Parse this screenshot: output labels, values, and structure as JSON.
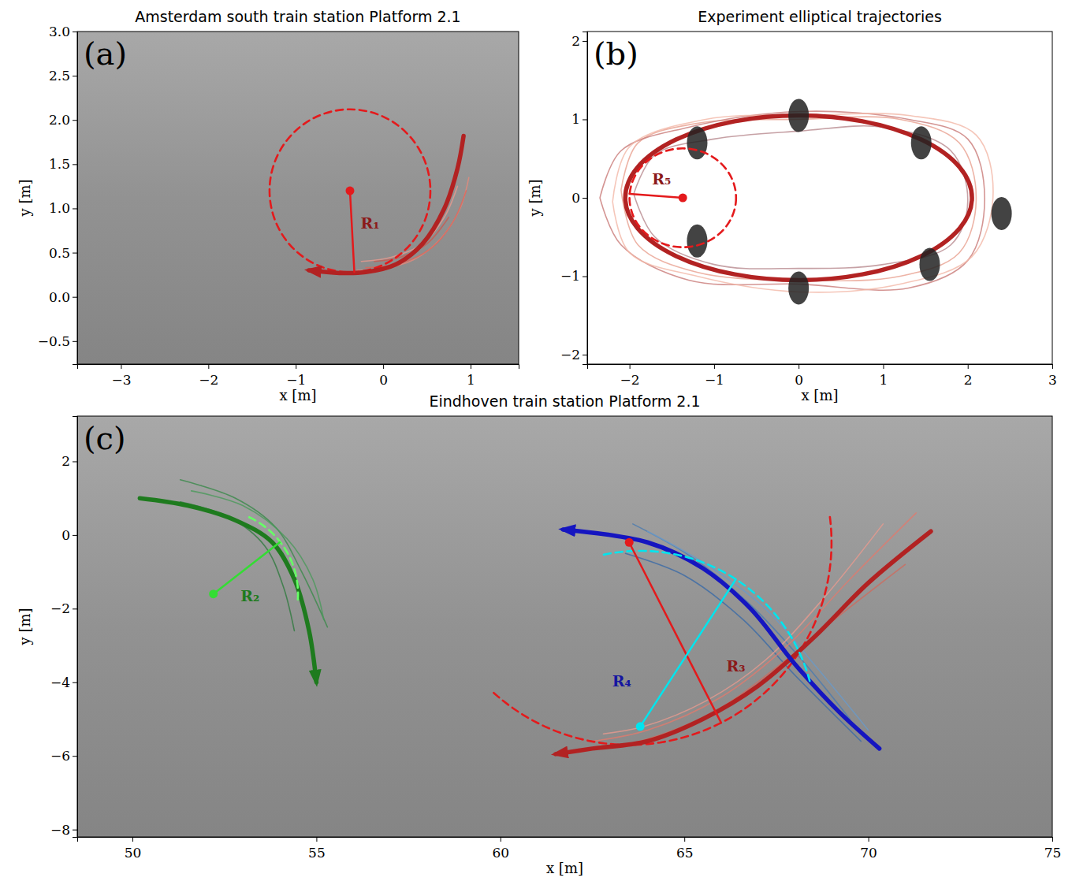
{
  "chart_data": [
    {
      "type": "line",
      "title": "Amsterdam south train station Platform 2.1",
      "panel_label": "(a)",
      "x_label": "x [m]",
      "y_label": "y [m]",
      "xlim": [
        -3.5,
        1.55
      ],
      "ylim": [
        -0.76,
        3.0
      ],
      "xticks": [
        {
          "value": -3,
          "label": "−3"
        },
        {
          "value": -2,
          "label": "−2"
        },
        {
          "value": -1,
          "label": "−1"
        },
        0,
        1
      ],
      "yticks": [
        {
          "value": -0.5,
          "label": "−0.5"
        },
        {
          "value": 0,
          "label": "0.0"
        },
        0.5,
        {
          "value": 1,
          "label": "1.0"
        },
        1.5,
        {
          "value": 2,
          "label": "2.0"
        },
        2.5,
        {
          "value": 3,
          "label": "3.0"
        }
      ],
      "series": [
        {
          "type": "line",
          "color": "#e58a7c",
          "line_style": "thin",
          "x": [
            0.98,
            0.88,
            0.65,
            0.35,
            0.0,
            -0.3
          ],
          "y": [
            1.35,
            1.0,
            0.65,
            0.42,
            0.32,
            0.3
          ]
        },
        {
          "type": "line",
          "color": "#d9685c",
          "line_style": "thin",
          "x": [
            0.95,
            0.8,
            0.55,
            0.2,
            -0.2
          ],
          "y": [
            1.2,
            0.85,
            0.55,
            0.38,
            0.33
          ]
        },
        {
          "type": "line",
          "color": "#e89a8e",
          "line_style": "thin",
          "x": [
            0.85,
            0.7,
            0.45,
            0.1,
            -0.25
          ],
          "y": [
            1.25,
            0.9,
            0.6,
            0.45,
            0.4
          ]
        },
        {
          "type": "line",
          "color": "#c85a50",
          "line_style": "thin",
          "x": [
            0.75,
            0.5,
            0.2,
            -0.1
          ],
          "y": [
            0.9,
            0.6,
            0.45,
            0.4
          ]
        },
        {
          "type": "circle",
          "color": "#e41a1c",
          "line_style": "dashed",
          "cx": -0.38,
          "cy": 1.2,
          "r": 0.92
        },
        {
          "type": "line",
          "color": "#b22222",
          "line_style": "thick",
          "marker": "arrow",
          "x": [
            0.92,
            0.85,
            0.7,
            0.45,
            0.15,
            -0.2,
            -0.5,
            -0.85
          ],
          "y": [
            1.82,
            1.45,
            1.0,
            0.6,
            0.37,
            0.28,
            0.27,
            0.3
          ]
        },
        {
          "type": "line",
          "color": "#e41a1c",
          "line_style": "solid",
          "x": [
            -0.38,
            -0.33
          ],
          "y": [
            1.2,
            0.28
          ]
        },
        {
          "type": "scatter",
          "color": "#e41a1c",
          "marker": "dot",
          "x": [
            -0.38
          ],
          "y": [
            1.2
          ]
        }
      ],
      "annotations": [
        {
          "text": "R₁",
          "x": -0.15,
          "y": 0.82,
          "color": "#8b1a1a"
        }
      ]
    },
    {
      "type": "line",
      "title": "Experiment elliptical trajectories",
      "panel_label": "(b)",
      "x_label": "x [m]",
      "y_label": "y [m]",
      "xlim": [
        -2.5,
        3.0
      ],
      "ylim": [
        -2.12,
        2.12
      ],
      "xticks": [
        {
          "value": -2,
          "label": "−2"
        },
        {
          "value": -1,
          "label": "−1"
        },
        0,
        1,
        2,
        3
      ],
      "yticks": [
        {
          "value": -2,
          "label": "−2"
        },
        {
          "value": -1,
          "label": "−1"
        },
        0,
        1,
        2
      ],
      "series": [
        {
          "type": "line",
          "color": "#e8a090",
          "line_style": "thin",
          "x": [
            -2.1,
            -1.9,
            -1.2,
            0,
            1.2,
            1.9,
            2.1,
            1.9,
            1.2,
            0,
            -1.2,
            -1.9,
            -2.1
          ],
          "y": [
            0.1,
            0.7,
            0.95,
            1.0,
            1.0,
            0.7,
            0,
            -0.7,
            -1.0,
            -1.05,
            -0.95,
            -0.6,
            0.1
          ]
        },
        {
          "type": "line",
          "color": "#c97a78",
          "line_style": "thin",
          "x": [
            -2.35,
            -2.1,
            -1.3,
            0,
            1.3,
            2.0,
            2.2,
            2.0,
            1.3,
            0,
            -1.3,
            -2.1,
            -2.35
          ],
          "y": [
            0,
            0.6,
            0.9,
            1.1,
            1.0,
            0.75,
            0,
            -0.8,
            -1.15,
            -1.1,
            -1.05,
            -0.6,
            0
          ]
        },
        {
          "type": "line",
          "color": "#b8898e",
          "line_style": "thin",
          "x": [
            -1.95,
            -1.7,
            -1.0,
            0,
            1.0,
            1.8,
            2.0,
            1.8,
            1.0,
            0,
            -1.0,
            -1.7,
            -1.95
          ],
          "y": [
            0.05,
            0.55,
            0.75,
            0.85,
            0.9,
            0.6,
            -0.05,
            -0.6,
            -0.85,
            -0.9,
            -0.85,
            -0.5,
            0.05
          ]
        },
        {
          "type": "line",
          "color": "#f2b8a8",
          "line_style": "thin",
          "x": [
            -2.2,
            -2.0,
            -1.1,
            0.1,
            1.3,
            2.1,
            2.3,
            2.05,
            1.2,
            0,
            -1.2,
            -2.0,
            -2.2
          ],
          "y": [
            -0.05,
            0.65,
            1.0,
            1.05,
            1.05,
            0.8,
            0.05,
            -0.75,
            -1.1,
            -1.2,
            -1.0,
            -0.7,
            -0.05
          ]
        },
        {
          "type": "ellipse",
          "color": "#b22222",
          "line_style": "thick",
          "cx": 0,
          "cy": 0,
          "rx": 2.05,
          "ry": 1.05
        },
        {
          "type": "scatter",
          "color": "#222222",
          "marker": "person",
          "x": [
            -1.2,
            0,
            1.45,
            2.4,
            1.55,
            0,
            -1.2
          ],
          "y": [
            0.7,
            1.05,
            0.7,
            -0.2,
            -0.85,
            -1.15,
            -0.55
          ]
        },
        {
          "type": "circle",
          "color": "#e41a1c",
          "line_style": "dashed",
          "cx": -1.37,
          "cy": 0,
          "r": 0.63
        },
        {
          "type": "line",
          "color": "#e41a1c",
          "line_style": "solid",
          "x": [
            -1.37,
            -2.0
          ],
          "y": [
            0,
            0.05
          ]
        },
        {
          "type": "scatter",
          "color": "#e41a1c",
          "marker": "dot",
          "x": [
            -1.37
          ],
          "y": [
            0
          ]
        }
      ],
      "annotations": [
        {
          "text": "R₅",
          "x": -1.62,
          "y": 0.22,
          "color": "#8b1a1a"
        }
      ]
    },
    {
      "type": "line",
      "title": "Eindhoven train station Platform 2.1",
      "panel_label": "(c)",
      "x_label": "x [m]",
      "y_label": "y [m]",
      "xlim": [
        48.5,
        75.0
      ],
      "ylim": [
        -8.2,
        3.23
      ],
      "xticks": [
        50,
        55,
        60,
        65,
        70,
        75
      ],
      "yticks": [
        {
          "value": -8,
          "label": "−8"
        },
        {
          "value": -6,
          "label": "−6"
        },
        {
          "value": -4,
          "label": "−4"
        },
        {
          "value": -2,
          "label": "−2"
        },
        0,
        2
      ],
      "series": [
        {
          "type": "line",
          "color": "#3a8a4a",
          "line_style": "thin",
          "x": [
            51.3,
            52.8,
            53.9,
            54.6,
            55.3
          ],
          "y": [
            1.5,
            1.0,
            0.2,
            -1.0,
            -2.5
          ]
        },
        {
          "type": "line",
          "color": "#2f7a3f",
          "line_style": "thin",
          "x": [
            51.3,
            52.6,
            53.6,
            54.1,
            54.4
          ],
          "y": [
            0.9,
            0.5,
            -0.3,
            -1.4,
            -2.6
          ]
        },
        {
          "type": "line",
          "color": "#4a9a5a",
          "line_style": "thin",
          "x": [
            51.6,
            53.0,
            54.2,
            54.9,
            55.2
          ],
          "y": [
            1.2,
            0.8,
            -0.1,
            -1.2,
            -2.3
          ]
        },
        {
          "type": "line",
          "color": "#4a7ab0",
          "line_style": "thin",
          "x": [
            63.6,
            65.2,
            66.8,
            68.2,
            69.5
          ],
          "y": [
            0.3,
            -0.6,
            -1.9,
            -3.4,
            -5.0
          ]
        },
        {
          "type": "line",
          "color": "#3a6aa8",
          "line_style": "thin",
          "x": [
            63.4,
            65.0,
            66.6,
            68.0,
            69.8
          ],
          "y": [
            -0.5,
            -1.1,
            -2.3,
            -3.8,
            -5.6
          ]
        },
        {
          "type": "line",
          "color": "#6a9ac8",
          "line_style": "thin",
          "x": [
            64.0,
            65.6,
            67.2,
            68.6,
            70.0
          ],
          "y": [
            0.1,
            -0.8,
            -2.0,
            -3.6,
            -5.3
          ]
        },
        {
          "type": "line",
          "color": "#e07b6e",
          "line_style": "thin",
          "x": [
            71.3,
            69.5,
            67.8,
            66.0,
            64.0,
            62.5
          ],
          "y": [
            0.6,
            -1.2,
            -3.0,
            -4.4,
            -5.3,
            -5.6
          ]
        },
        {
          "type": "line",
          "color": "#d06a5e",
          "line_style": "thin",
          "x": [
            71.0,
            69.2,
            67.5,
            65.8,
            63.8,
            62.6
          ],
          "y": [
            -0.8,
            -2.2,
            -3.6,
            -4.8,
            -5.6,
            -5.8
          ]
        },
        {
          "type": "line",
          "color": "#e89a8e",
          "line_style": "thin",
          "x": [
            70.4,
            68.8,
            67.2,
            65.6,
            63.9,
            62.8
          ],
          "y": [
            0.3,
            -1.7,
            -3.4,
            -4.5,
            -5.2,
            -5.4
          ]
        },
        {
          "type": "line",
          "color": "#1e7b1e",
          "line_style": "thick",
          "marker": "arrow",
          "x": [
            50.2,
            51.5,
            52.8,
            53.8,
            54.4,
            54.8,
            55.0
          ],
          "y": [
            1.0,
            0.8,
            0.4,
            -0.2,
            -1.2,
            -2.6,
            -4.0
          ]
        },
        {
          "type": "arc",
          "color": "#66ff66",
          "line_style": "dashed",
          "cx": 52.2,
          "cy": -1.6,
          "r": 2.3,
          "theta": [
            65,
            -5
          ]
        },
        {
          "type": "line",
          "color": "#33dd33",
          "line_style": "solid",
          "x": [
            52.2,
            54.0
          ],
          "y": [
            -1.6,
            -0.2
          ]
        },
        {
          "type": "scatter",
          "color": "#33dd33",
          "marker": "dot",
          "x": [
            52.2
          ],
          "y": [
            -1.6
          ]
        },
        {
          "type": "arc",
          "color": "#e41a1c",
          "line_style": "dashed",
          "cx": 63.5,
          "cy": -0.2,
          "r": 5.5,
          "theta": [
            228,
            368
          ]
        },
        {
          "type": "line",
          "color": "#b22222",
          "line_style": "thick",
          "marker": "arrow",
          "x": [
            71.7,
            70.0,
            68.5,
            67.0,
            65.5,
            64.0,
            62.5,
            61.5
          ],
          "y": [
            0.1,
            -1.3,
            -2.8,
            -4.1,
            -5.0,
            -5.6,
            -5.8,
            -5.95
          ]
        },
        {
          "type": "line",
          "color": "#1515c0",
          "line_style": "thick",
          "marker": "arrow",
          "x": [
            70.3,
            69.2,
            68.0,
            66.8,
            65.5,
            64.0,
            61.7
          ],
          "y": [
            -5.8,
            -4.8,
            -3.5,
            -2.0,
            -0.9,
            -0.2,
            0.15
          ]
        },
        {
          "type": "arc",
          "color": "#00e5ee",
          "line_style": "dashed",
          "cx": 63.8,
          "cy": -5.2,
          "r": 4.77,
          "theta": [
            102,
            15
          ]
        },
        {
          "type": "line",
          "color": "#e41a1c",
          "line_style": "solid",
          "x": [
            63.5,
            66.0
          ],
          "y": [
            -0.2,
            -5.1
          ]
        },
        {
          "type": "scatter",
          "color": "#e41a1c",
          "marker": "dot",
          "x": [
            63.5
          ],
          "y": [
            -0.2
          ]
        },
        {
          "type": "line",
          "color": "#00e5ee",
          "line_style": "solid",
          "x": [
            63.8,
            66.4
          ],
          "y": [
            -5.2,
            -1.2
          ]
        },
        {
          "type": "scatter",
          "color": "#00e5ee",
          "marker": "dot",
          "x": [
            63.8
          ],
          "y": [
            -5.2
          ]
        }
      ],
      "annotations": [
        {
          "text": "R₂",
          "x": 53.2,
          "y": -1.7,
          "color": "#1e7b1e"
        },
        {
          "text": "R₃",
          "x": 66.4,
          "y": -3.6,
          "color": "#8b1a1a"
        },
        {
          "text": "R₄",
          "x": 63.3,
          "y": -4.0,
          "color": "#1515a0"
        }
      ]
    }
  ]
}
